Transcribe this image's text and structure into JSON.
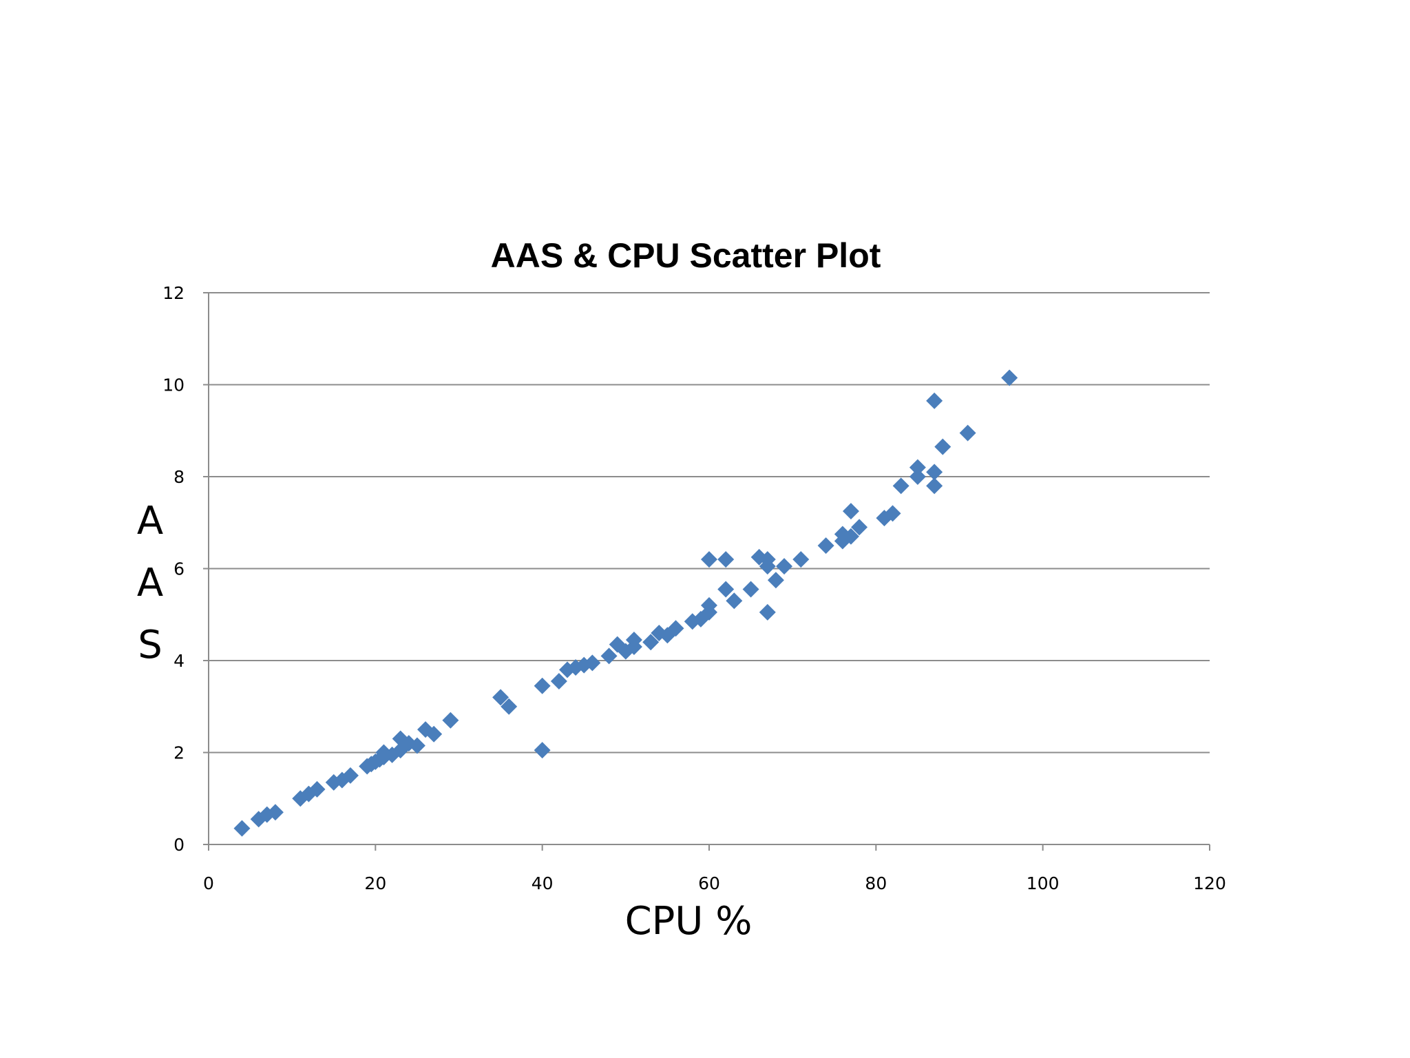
{
  "chart_data": {
    "type": "scatter",
    "title": "AAS & CPU Scatter Plot",
    "xlabel": "CPU %",
    "ylabel": "AAS",
    "xlim": [
      0,
      120
    ],
    "ylim": [
      0,
      12
    ],
    "xticks": [
      "0",
      "20",
      "40",
      "60",
      "80",
      "100",
      "120"
    ],
    "yticks": [
      "0",
      "2",
      "4",
      "6",
      "8",
      "10",
      "12"
    ],
    "grid": "horizontal",
    "legend": "none",
    "marker": "diamond",
    "color": "#4a7ebb",
    "series": [
      {
        "points": [
          [
            4,
            0.35
          ],
          [
            6,
            0.55
          ],
          [
            7,
            0.65
          ],
          [
            8,
            0.7
          ],
          [
            11,
            1.0
          ],
          [
            12,
            1.1
          ],
          [
            13,
            1.2
          ],
          [
            15,
            1.35
          ],
          [
            16,
            1.4
          ],
          [
            17,
            1.5
          ],
          [
            19,
            1.7
          ],
          [
            19.5,
            1.75
          ],
          [
            20,
            1.8
          ],
          [
            20.5,
            1.85
          ],
          [
            21,
            1.9
          ],
          [
            21,
            2.0
          ],
          [
            22,
            1.95
          ],
          [
            23,
            2.05
          ],
          [
            23,
            2.3
          ],
          [
            24,
            2.2
          ],
          [
            25,
            2.15
          ],
          [
            26,
            2.5
          ],
          [
            27,
            2.4
          ],
          [
            29,
            2.7
          ],
          [
            35,
            3.2
          ],
          [
            36,
            3.0
          ],
          [
            40,
            3.45
          ],
          [
            40,
            2.05
          ],
          [
            42,
            3.55
          ],
          [
            43,
            3.8
          ],
          [
            44,
            3.85
          ],
          [
            45,
            3.9
          ],
          [
            46,
            3.95
          ],
          [
            48,
            4.1
          ],
          [
            49,
            4.35
          ],
          [
            50,
            4.2
          ],
          [
            51,
            4.3
          ],
          [
            51,
            4.45
          ],
          [
            53,
            4.4
          ],
          [
            54,
            4.6
          ],
          [
            55,
            4.55
          ],
          [
            56,
            4.7
          ],
          [
            58,
            4.85
          ],
          [
            59,
            4.9
          ],
          [
            60,
            5.05
          ],
          [
            60,
            5.2
          ],
          [
            60,
            6.2
          ],
          [
            62,
            6.2
          ],
          [
            62,
            5.55
          ],
          [
            63,
            5.3
          ],
          [
            65,
            5.55
          ],
          [
            66,
            6.25
          ],
          [
            67,
            6.2
          ],
          [
            67,
            6.05
          ],
          [
            67,
            5.05
          ],
          [
            68,
            5.75
          ],
          [
            69,
            6.05
          ],
          [
            71,
            6.2
          ],
          [
            74,
            6.5
          ],
          [
            76,
            6.6
          ],
          [
            76,
            6.75
          ],
          [
            77,
            6.7
          ],
          [
            77,
            7.25
          ],
          [
            78,
            6.9
          ],
          [
            81,
            7.1
          ],
          [
            82,
            7.2
          ],
          [
            83,
            7.8
          ],
          [
            85,
            8.0
          ],
          [
            85,
            8.2
          ],
          [
            87,
            8.1
          ],
          [
            87,
            7.8
          ],
          [
            87,
            9.65
          ],
          [
            88,
            8.65
          ],
          [
            91,
            8.95
          ],
          [
            96,
            10.15
          ]
        ]
      }
    ]
  }
}
